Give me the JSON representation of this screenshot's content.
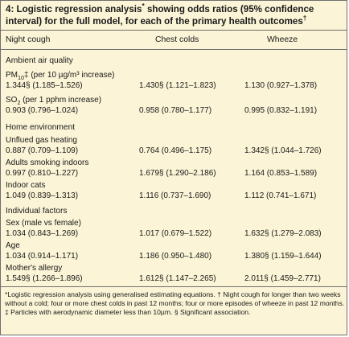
{
  "table": {
    "caption_main": "4: Logistic regression analysis",
    "caption_mark": "*",
    "caption_rest": " showing odds ratios (95% confidence interval) for the full model, for each of the primary health outcomes",
    "caption_dagger": "†",
    "columns": [
      "Night cough",
      "Chest colds",
      "Wheeze"
    ],
    "sections": [
      {
        "title": "Ambient air quality",
        "rows": [
          {
            "label_pre": "PM",
            "label_sub": "10",
            "label_post": "‡ (per 10 µg/m³ increase)",
            "night": "1.344§ (1.185–1.526)",
            "chest": "1.430§ (1.121–1.823)",
            "wheeze": "1.130  (0.927–1.378)"
          },
          {
            "label_pre": "SO",
            "label_sub": "2",
            "label_post": " (per 1 pphm increase)",
            "night": "0.903  (0.796–1.024)",
            "chest": "0.958  (0.780–1.177)",
            "wheeze": "0.995  (0.832–1.191)"
          }
        ]
      },
      {
        "title": "Home environment",
        "rows": [
          {
            "label_pre": "Unflued gas heating",
            "label_sub": "",
            "label_post": "",
            "night": "0.887  (0.709–1.109)",
            "chest": "0.764  (0.496–1.175)",
            "wheeze": "1.342§ (1.044–1.726)"
          },
          {
            "label_pre": "Adults smoking indoors",
            "label_sub": "",
            "label_post": "",
            "night": "0.997  (0.810–1.227)",
            "chest": "1.679§ (1.290–2.186)",
            "wheeze": "1.164  (0.853–1.589)"
          },
          {
            "label_pre": "Indoor cats",
            "label_sub": "",
            "label_post": "",
            "night": "1.049  (0.839–1.313)",
            "chest": "1.116  (0.737–1.690)",
            "wheeze": "1.112  (0.741–1.671)"
          }
        ]
      },
      {
        "title": "Individual factors",
        "rows": [
          {
            "label_pre": "Sex (male vs female)",
            "label_sub": "",
            "label_post": "",
            "night": "1.034  (0.843–1.269)",
            "chest": "1.017  (0.679–1.522)",
            "wheeze": "1.632§ (1.279–2.083)"
          },
          {
            "label_pre": "Age",
            "label_sub": "",
            "label_post": "",
            "night": "1.034  (0.914–1.171)",
            "chest": "1.186  (0.950–1.480)",
            "wheeze": "1.380§ (1.159–1.644)"
          },
          {
            "label_pre": "Mother's allergy",
            "label_sub": "",
            "label_post": "",
            "night": "1.549§ (1.266–1.896)",
            "chest": "1.612§ (1.147–2.265)",
            "wheeze": "2.011§ (1.459–2.771)"
          }
        ]
      }
    ],
    "footnote": "*Logistic regression analysis using generalised estimating equations. † Night cough for longer than two weeks without a cold; four or more chest colds in past 12 months; four or more episodes of wheeze in past 12 months. ‡ Particles with aerodynamic diameter less than 10µm. § Significant association."
  }
}
